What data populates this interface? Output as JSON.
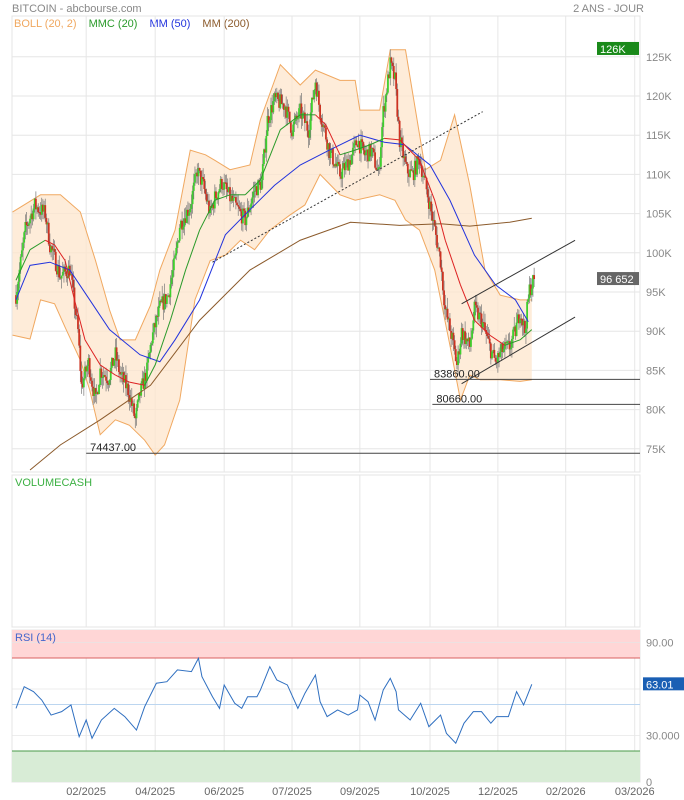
{
  "header": {
    "title": "BITCOIN - abcbourse.com",
    "period": "2 ANS - JOUR"
  },
  "legend": [
    {
      "label": "BOLL (20, 2)",
      "color": "#f0a860"
    },
    {
      "label": "MMC (20)",
      "color": "#2a9a2a"
    },
    {
      "label": "MM (50)",
      "color": "#2233dd"
    },
    {
      "label": "MM (200)",
      "color": "#8b5a2b"
    }
  ],
  "volume_panel": {
    "label": "VOLUMECASH"
  },
  "rsi_panel": {
    "label": "RSI (14)",
    "current_label": "63.01"
  },
  "chart_data": {
    "type": "candlestick",
    "title": "BITCOIN",
    "x_unit": "days from start",
    "x_ticks": [
      {
        "day": 60,
        "label": "02/2025"
      },
      {
        "day": 119,
        "label": "04/2025"
      },
      {
        "day": 178,
        "label": "06/2025"
      },
      {
        "day": 236,
        "label": "07/2025"
      },
      {
        "day": 294,
        "label": "09/2025"
      },
      {
        "day": 354,
        "label": "10/2025"
      },
      {
        "day": 412,
        "label": "12/2025"
      },
      {
        "day": 470,
        "label": "02/2026"
      },
      {
        "day": 529,
        "label": "03/2026"
      }
    ],
    "y_ticks": [
      {
        "value": 75,
        "label": "75K"
      },
      {
        "value": 80,
        "label": "80K"
      },
      {
        "value": 85,
        "label": "85K"
      },
      {
        "value": 90,
        "label": "90K"
      },
      {
        "value": 95,
        "label": "95K"
      },
      {
        "value": 100,
        "label": "100K"
      },
      {
        "value": 105,
        "label": "105K"
      },
      {
        "value": 110,
        "label": "110K"
      },
      {
        "value": 115,
        "label": "115K"
      },
      {
        "value": 120,
        "label": "120K"
      },
      {
        "value": 125,
        "label": "125K"
      }
    ],
    "ylim": [
      71,
      128
    ],
    "last_price": {
      "value": 96.652,
      "label": "96 652",
      "color": "#666666"
    },
    "high_marker": {
      "value": 126,
      "label": "126K",
      "color": "#1a8a1a"
    },
    "close_path": [
      [
        0,
        94.6
      ],
      [
        8,
        103
      ],
      [
        16,
        106
      ],
      [
        25,
        105
      ],
      [
        29,
        101
      ],
      [
        38,
        97
      ],
      [
        46,
        98
      ],
      [
        53,
        90
      ],
      [
        56,
        83
      ],
      [
        62,
        86
      ],
      [
        68,
        81
      ],
      [
        72,
        85
      ],
      [
        79,
        84
      ],
      [
        85,
        87
      ],
      [
        89,
        84.5
      ],
      [
        96,
        82.5
      ],
      [
        102,
        78.7
      ],
      [
        106,
        82
      ],
      [
        112,
        85
      ],
      [
        116,
        89
      ],
      [
        123,
        93
      ],
      [
        130,
        94.6
      ],
      [
        136,
        99
      ],
      [
        140,
        103.5
      ],
      [
        149,
        106
      ],
      [
        155,
        110.5
      ],
      [
        160,
        108.6
      ],
      [
        166,
        105
      ],
      [
        170,
        107
      ],
      [
        176,
        109
      ],
      [
        183,
        107
      ],
      [
        192,
        105
      ],
      [
        196,
        104.2
      ],
      [
        204,
        108
      ],
      [
        210,
        109
      ],
      [
        215,
        117
      ],
      [
        221,
        119.5
      ],
      [
        230,
        118.8
      ],
      [
        236,
        115.7
      ],
      [
        243,
        118
      ],
      [
        250,
        115.7
      ],
      [
        256,
        122
      ],
      [
        260,
        118
      ],
      [
        268,
        113
      ],
      [
        277,
        110
      ],
      [
        286,
        112
      ],
      [
        292,
        114.4
      ],
      [
        298,
        112.5
      ],
      [
        304,
        113
      ],
      [
        310,
        110
      ],
      [
        314,
        118
      ],
      [
        320,
        124
      ],
      [
        324,
        122
      ],
      [
        328,
        114.4
      ],
      [
        334,
        110.5
      ],
      [
        339,
        110
      ],
      [
        345,
        112
      ],
      [
        352,
        107.4
      ],
      [
        358,
        103
      ],
      [
        363,
        99
      ],
      [
        367,
        92.7
      ],
      [
        373,
        89
      ],
      [
        377,
        85.7
      ],
      [
        381,
        90
      ],
      [
        388,
        88
      ],
      [
        392,
        92.7
      ],
      [
        398,
        91.4
      ],
      [
        405,
        88
      ],
      [
        410,
        86
      ],
      [
        416,
        87.6
      ],
      [
        422,
        88
      ],
      [
        427,
        90
      ],
      [
        431,
        92.7
      ],
      [
        435,
        90
      ],
      [
        439,
        95.3
      ],
      [
        443,
        96.65
      ]
    ],
    "mm200": [
      [
        12,
        72.3
      ],
      [
        38,
        75.5
      ],
      [
        72,
        78.7
      ],
      [
        115,
        83.1
      ],
      [
        157,
        91.4
      ],
      [
        200,
        97.8
      ],
      [
        243,
        101.6
      ],
      [
        286,
        103.9
      ],
      [
        328,
        103.5
      ],
      [
        363,
        103.7
      ],
      [
        388,
        103.4
      ],
      [
        422,
        103.9
      ],
      [
        441,
        104.4
      ]
    ],
    "mm50": [
      [
        0,
        94
      ],
      [
        12,
        98.4
      ],
      [
        29,
        98.8
      ],
      [
        46,
        97.8
      ],
      [
        63,
        94
      ],
      [
        80,
        90.2
      ],
      [
        106,
        87
      ],
      [
        123,
        86.1
      ],
      [
        136,
        88.9
      ],
      [
        157,
        94
      ],
      [
        179,
        102.3
      ],
      [
        200,
        105.5
      ],
      [
        221,
        108.6
      ],
      [
        243,
        111.2
      ],
      [
        268,
        113.1
      ],
      [
        294,
        115
      ],
      [
        315,
        114.1
      ],
      [
        332,
        113.8
      ],
      [
        354,
        111.2
      ],
      [
        371,
        106.7
      ],
      [
        392,
        99.7
      ],
      [
        410,
        95.9
      ],
      [
        427,
        94
      ],
      [
        438,
        91.2
      ]
    ],
    "mmc20": [
      [
        0,
        96.5
      ],
      [
        12,
        100.4
      ],
      [
        25,
        101.6
      ],
      [
        33,
        101
      ],
      [
        42,
        99
      ],
      [
        50,
        94
      ],
      [
        59,
        88.9
      ],
      [
        72,
        85.7
      ],
      [
        85,
        84.4
      ],
      [
        97,
        83.5
      ],
      [
        110,
        83.1
      ],
      [
        119,
        85.7
      ],
      [
        132,
        91.4
      ],
      [
        145,
        97.8
      ],
      [
        157,
        102.9
      ],
      [
        170,
        106.7
      ],
      [
        183,
        107.4
      ],
      [
        196,
        107.4
      ],
      [
        209,
        109.3
      ],
      [
        226,
        115.7
      ],
      [
        243,
        117.6
      ],
      [
        256,
        117.6
      ],
      [
        265,
        116.3
      ],
      [
        277,
        112.5
      ],
      [
        290,
        113.1
      ],
      [
        303,
        113.8
      ],
      [
        315,
        114.6
      ],
      [
        328,
        114.4
      ],
      [
        345,
        111.8
      ],
      [
        358,
        106.7
      ],
      [
        367,
        101.6
      ],
      [
        380,
        95.9
      ],
      [
        392,
        91.4
      ],
      [
        405,
        89.5
      ],
      [
        418,
        88.2
      ],
      [
        431,
        88.9
      ],
      [
        441,
        90.2
      ]
    ],
    "boll_upper": [
      [
        -3,
        105.2
      ],
      [
        21,
        107.4
      ],
      [
        38,
        107.4
      ],
      [
        55,
        105.2
      ],
      [
        68,
        99
      ],
      [
        80,
        92.7
      ],
      [
        89,
        88.9
      ],
      [
        102,
        88.9
      ],
      [
        115,
        93.3
      ],
      [
        123,
        97.8
      ],
      [
        136,
        102.9
      ],
      [
        149,
        113.1
      ],
      [
        162,
        112.5
      ],
      [
        170,
        111.8
      ],
      [
        183,
        110.6
      ],
      [
        200,
        111.2
      ],
      [
        209,
        117
      ],
      [
        226,
        124
      ],
      [
        243,
        121.4
      ],
      [
        256,
        123.3
      ],
      [
        277,
        122
      ],
      [
        290,
        122
      ],
      [
        294,
        118.2
      ],
      [
        311,
        118.2
      ],
      [
        320,
        125.9
      ],
      [
        333,
        125.9
      ],
      [
        350,
        110.6
      ],
      [
        363,
        111.8
      ],
      [
        375,
        117.6
      ],
      [
        388,
        108.6
      ],
      [
        401,
        97.8
      ],
      [
        414,
        94.6
      ],
      [
        431,
        94
      ],
      [
        441,
        94
      ]
    ],
    "boll_lower": [
      [
        -3,
        89.5
      ],
      [
        12,
        89
      ],
      [
        21,
        94
      ],
      [
        33,
        93.5
      ],
      [
        42,
        90.5
      ],
      [
        55,
        86.3
      ],
      [
        63,
        82.5
      ],
      [
        72,
        76.8
      ],
      [
        85,
        78.7
      ],
      [
        97,
        78
      ],
      [
        110,
        76.1
      ],
      [
        119,
        74.2
      ],
      [
        127,
        75.5
      ],
      [
        140,
        81.2
      ],
      [
        153,
        94
      ],
      [
        166,
        99
      ],
      [
        179,
        99.7
      ],
      [
        192,
        101.6
      ],
      [
        204,
        100.4
      ],
      [
        217,
        102.9
      ],
      [
        234,
        104.8
      ],
      [
        247,
        106.1
      ],
      [
        260,
        110
      ],
      [
        277,
        107.4
      ],
      [
        290,
        106.7
      ],
      [
        311,
        107.4
      ],
      [
        324,
        106.7
      ],
      [
        333,
        104.2
      ],
      [
        345,
        102.9
      ],
      [
        358,
        97.8
      ],
      [
        371,
        88.2
      ],
      [
        380,
        81.2
      ],
      [
        388,
        84.4
      ],
      [
        397,
        83.8
      ],
      [
        414,
        83.8
      ],
      [
        431,
        83.6
      ],
      [
        441,
        83.8
      ]
    ],
    "trendlines": [
      {
        "name": "dotted-support",
        "from": [
          168,
          98.8
        ],
        "to": [
          399,
          118
        ],
        "style": "dotted"
      },
      {
        "name": "channel-upper",
        "from": [
          381,
          93.5
        ],
        "to": [
          478,
          101.6
        ],
        "style": "solid"
      },
      {
        "name": "channel-lower",
        "from": [
          381,
          83.3
        ],
        "to": [
          478,
          91.8
        ],
        "style": "solid"
      }
    ],
    "levels": [
      {
        "value": 74.437,
        "label": "74437.00",
        "from_day": 60
      },
      {
        "value": 83.86,
        "label": "83860.00",
        "from_day": 354
      },
      {
        "value": 80.66,
        "label": "80660.00",
        "from_day": 356
      }
    ],
    "rsi": {
      "period": 14,
      "ylim": [
        0,
        100
      ],
      "overbought": 80,
      "oversold": 20,
      "mid": 50,
      "y_ticks": [
        {
          "value": 90,
          "label": "90.00"
        },
        {
          "value": 30,
          "label": "30.000"
        },
        {
          "value": 0,
          "label": "0"
        }
      ],
      "values": [
        [
          0,
          47.5
        ],
        [
          7,
          61.5
        ],
        [
          15,
          58.3
        ],
        [
          22,
          52.9
        ],
        [
          30,
          43.2
        ],
        [
          39,
          45.4
        ],
        [
          47,
          49.7
        ],
        [
          54,
          29.2
        ],
        [
          60,
          40
        ],
        [
          65,
          28.2
        ],
        [
          73,
          40
        ],
        [
          84,
          47.5
        ],
        [
          93,
          42.2
        ],
        [
          103,
          33.5
        ],
        [
          110,
          48.6
        ],
        [
          120,
          63.7
        ],
        [
          129,
          64.7
        ],
        [
          138,
          72.3
        ],
        [
          150,
          71.2
        ],
        [
          156,
          79.8
        ],
        [
          159,
          67.9
        ],
        [
          168,
          55
        ],
        [
          174,
          47.5
        ],
        [
          178,
          62.6
        ],
        [
          187,
          50.8
        ],
        [
          193,
          47.5
        ],
        [
          198,
          55
        ],
        [
          206,
          55
        ],
        [
          209,
          59.4
        ],
        [
          217,
          74.4
        ],
        [
          223,
          65.8
        ],
        [
          232,
          62.6
        ],
        [
          241,
          47.5
        ],
        [
          247,
          57.2
        ],
        [
          256,
          69
        ],
        [
          260,
          51.8
        ],
        [
          266,
          42.2
        ],
        [
          275,
          46.5
        ],
        [
          284,
          43.2
        ],
        [
          292,
          46.5
        ],
        [
          294,
          56.1
        ],
        [
          301,
          51.8
        ],
        [
          307,
          40
        ],
        [
          314,
          59.4
        ],
        [
          320,
          66.9
        ],
        [
          325,
          58.3
        ],
        [
          327,
          46.5
        ],
        [
          337,
          40
        ],
        [
          346,
          50.8
        ],
        [
          353,
          35.7
        ],
        [
          363,
          43.2
        ],
        [
          368,
          31.4
        ],
        [
          376,
          25
        ],
        [
          383,
          37.9
        ],
        [
          391,
          45.4
        ],
        [
          398,
          45.4
        ],
        [
          406,
          37.9
        ],
        [
          411,
          42.2
        ],
        [
          421,
          42.2
        ],
        [
          428,
          58.3
        ],
        [
          434,
          49.7
        ],
        [
          441,
          63.01
        ]
      ],
      "current": 63.01
    }
  }
}
